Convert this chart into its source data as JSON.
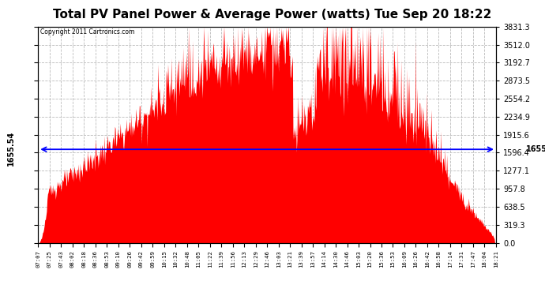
{
  "title": "Total PV Panel Power & Average Power (watts) Tue Sep 20 18:22",
  "copyright": "Copyright 2011 Cartronics.com",
  "y_max": 3831.3,
  "y_min": 0.0,
  "y_ticks": [
    0.0,
    319.3,
    638.5,
    957.8,
    1277.1,
    1596.4,
    1915.6,
    2234.9,
    2554.2,
    2873.5,
    3192.7,
    3512.0,
    3831.3
  ],
  "average_power": 1655.54,
  "avg_label": "1655.54",
  "background_color": "#ffffff",
  "fill_color": "#ff0000",
  "avg_line_color": "#0000ff",
  "grid_color": "#bbbbbb",
  "title_fontsize": 11,
  "x_tick_labels": [
    "07:07",
    "07:25",
    "07:43",
    "08:02",
    "08:18",
    "08:36",
    "08:53",
    "09:10",
    "09:26",
    "09:42",
    "09:59",
    "10:15",
    "10:32",
    "10:48",
    "11:05",
    "11:22",
    "11:39",
    "11:56",
    "12:13",
    "12:29",
    "12:46",
    "13:03",
    "13:21",
    "13:39",
    "13:57",
    "14:14",
    "14:30",
    "14:46",
    "15:03",
    "15:20",
    "15:36",
    "15:53",
    "16:09",
    "16:26",
    "16:42",
    "16:58",
    "17:14",
    "17:31",
    "17:47",
    "18:04",
    "18:21"
  ]
}
